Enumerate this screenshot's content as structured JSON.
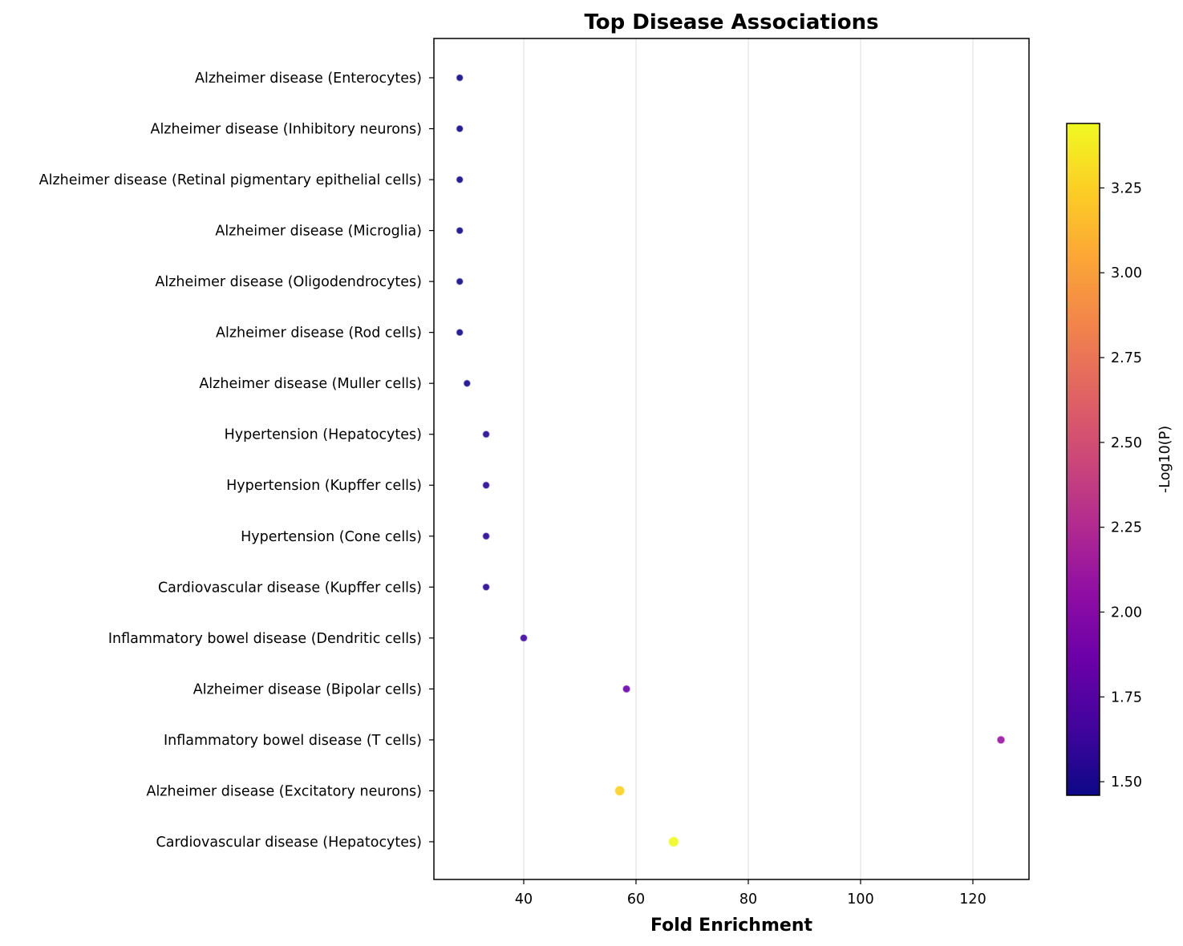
{
  "chart_data": {
    "type": "scatter",
    "title": "Top Disease Associations",
    "xlabel": "Fold Enrichment",
    "ylabel": "",
    "xlim": [
      24,
      130
    ],
    "xticks": [
      40,
      60,
      80,
      100,
      120
    ],
    "grid": "vertical",
    "colormap": "plasma",
    "colorbar": {
      "label": "-Log10(P)",
      "range": [
        1.46,
        3.44
      ],
      "ticks": [
        1.5,
        1.75,
        2.0,
        2.25,
        2.5,
        2.75,
        3.0,
        3.25
      ],
      "tick_labels": [
        "1.50",
        "1.75",
        "2.00",
        "2.25",
        "2.50",
        "2.75",
        "3.00",
        "3.25"
      ]
    },
    "points": [
      {
        "label": "Alzheimer disease (Enterocytes)",
        "x": 28.6,
        "neglog10p": 1.47
      },
      {
        "label": "Alzheimer disease (Inhibitory neurons)",
        "x": 28.6,
        "neglog10p": 1.47
      },
      {
        "label": "Alzheimer disease (Retinal pigmentary epithelial cells)",
        "x": 28.6,
        "neglog10p": 1.47
      },
      {
        "label": "Alzheimer disease (Microglia)",
        "x": 28.6,
        "neglog10p": 1.47
      },
      {
        "label": "Alzheimer disease (Oligodendrocytes)",
        "x": 28.6,
        "neglog10p": 1.47
      },
      {
        "label": "Alzheimer disease (Rod cells)",
        "x": 28.6,
        "neglog10p": 1.47
      },
      {
        "label": "Alzheimer disease (Muller cells)",
        "x": 29.9,
        "neglog10p": 1.49
      },
      {
        "label": "Hypertension (Hepatocytes)",
        "x": 33.3,
        "neglog10p": 1.55
      },
      {
        "label": "Hypertension (Kupffer cells)",
        "x": 33.3,
        "neglog10p": 1.55
      },
      {
        "label": "Hypertension (Cone cells)",
        "x": 33.3,
        "neglog10p": 1.55
      },
      {
        "label": "Cardiovascular disease (Kupffer cells)",
        "x": 33.3,
        "neglog10p": 1.55
      },
      {
        "label": "Inflammatory bowel disease (Dendritic cells)",
        "x": 40.0,
        "neglog10p": 1.65
      },
      {
        "label": "Alzheimer disease (Bipolar cells)",
        "x": 58.3,
        "neglog10p": 1.85
      },
      {
        "label": "Inflammatory bowel disease (T cells)",
        "x": 125.0,
        "neglog10p": 2.1
      },
      {
        "label": "Alzheimer disease (Excitatory neurons)",
        "x": 57.1,
        "neglog10p": 3.25
      },
      {
        "label": "Cardiovascular disease (Hepatocytes)",
        "x": 66.7,
        "neglog10p": 3.44
      }
    ]
  }
}
